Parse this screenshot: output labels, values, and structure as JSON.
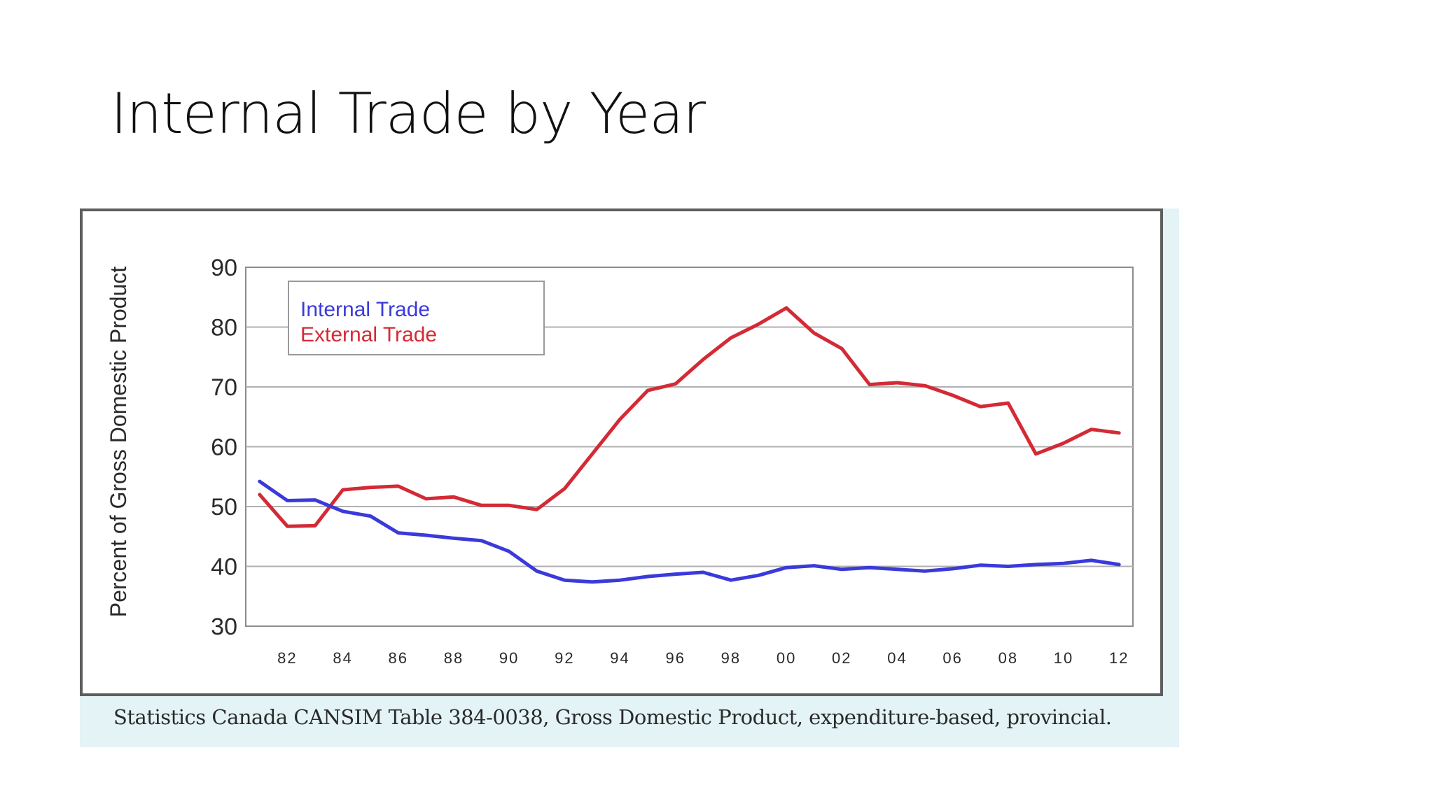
{
  "slide": {
    "title": "Internal Trade by Year",
    "source": "Statistics Canada CANSIM Table 384-0038, Gross Domestic Product, expenditure-based, provincial."
  },
  "chart_data": {
    "type": "line",
    "title": "",
    "xlabel": "",
    "ylabel": "Percent of Gross Domestic Product",
    "ylim": [
      30,
      90
    ],
    "xlim": [
      1980.5,
      2012.5
    ],
    "yticks": [
      30,
      40,
      50,
      60,
      70,
      80,
      90
    ],
    "xticks": [
      {
        "x": 1982,
        "label": "82"
      },
      {
        "x": 1984,
        "label": "84"
      },
      {
        "x": 1986,
        "label": "86"
      },
      {
        "x": 1988,
        "label": "88"
      },
      {
        "x": 1990,
        "label": "90"
      },
      {
        "x": 1992,
        "label": "92"
      },
      {
        "x": 1994,
        "label": "94"
      },
      {
        "x": 1996,
        "label": "96"
      },
      {
        "x": 1998,
        "label": "98"
      },
      {
        "x": 2000,
        "label": "00"
      },
      {
        "x": 2002,
        "label": "02"
      },
      {
        "x": 2004,
        "label": "04"
      },
      {
        "x": 2006,
        "label": "06"
      },
      {
        "x": 2008,
        "label": "08"
      },
      {
        "x": 2010,
        "label": "10"
      },
      {
        "x": 2012,
        "label": "12"
      }
    ],
    "grid": "horizontal",
    "legend_position": "top-left",
    "x": [
      1981,
      1982,
      1983,
      1984,
      1985,
      1986,
      1987,
      1988,
      1989,
      1990,
      1991,
      1992,
      1993,
      1994,
      1995,
      1996,
      1997,
      1998,
      1999,
      2000,
      2001,
      2002,
      2003,
      2004,
      2005,
      2006,
      2007,
      2008,
      2009,
      2010,
      2011,
      2012
    ],
    "series": [
      {
        "name": "Internal Trade",
        "color": "#3a3adb",
        "values": [
          54.2,
          51.0,
          51.1,
          49.2,
          48.4,
          45.6,
          45.2,
          44.7,
          44.3,
          42.5,
          39.2,
          37.7,
          37.4,
          37.7,
          38.3,
          38.7,
          39.0,
          37.7,
          38.5,
          39.8,
          40.1,
          39.5,
          39.8,
          39.5,
          39.2,
          39.6,
          40.2,
          40.0,
          40.3,
          40.5,
          41.0,
          40.3
        ]
      },
      {
        "name": "External Trade",
        "color": "#d42a35",
        "values": [
          52.0,
          46.7,
          46.8,
          52.8,
          53.2,
          53.4,
          51.3,
          51.6,
          50.2,
          50.2,
          49.5,
          53.0,
          58.8,
          64.6,
          69.4,
          70.5,
          74.6,
          78.2,
          80.5,
          83.2,
          79.0,
          76.4,
          70.4,
          70.7,
          70.2,
          68.6,
          66.7,
          67.3,
          58.8,
          60.6,
          62.9,
          62.3
        ]
      }
    ]
  }
}
